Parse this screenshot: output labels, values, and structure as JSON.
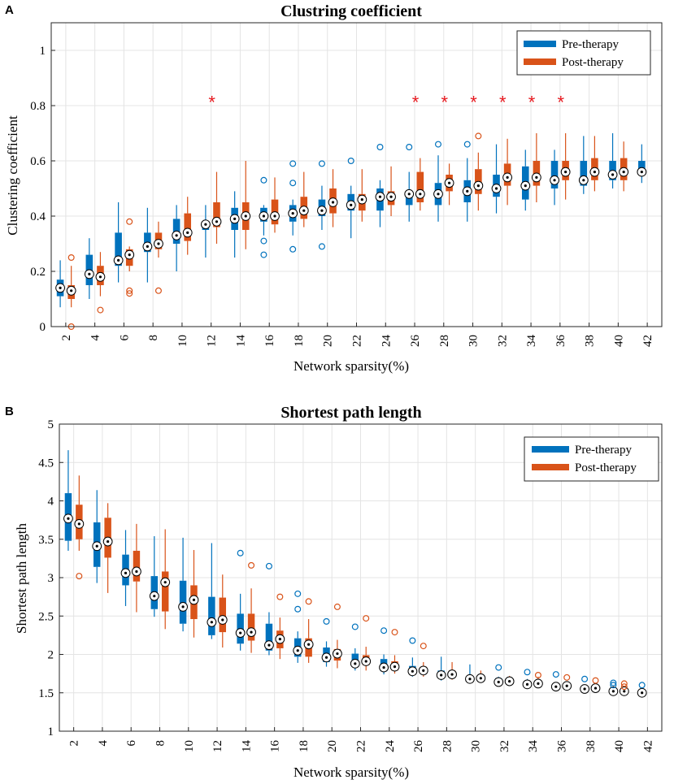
{
  "colors": {
    "pre": "#0072BD",
    "post": "#D95319",
    "star": "#E8191F",
    "grid": "#E4E4E4"
  },
  "chart_data": [
    {
      "panel_label": "A",
      "type": "box",
      "title": "Clustring coefficient",
      "xlabel": "Network sparsity(%)",
      "ylabel": "Clustering coefficient",
      "ylim": [
        0,
        1.1
      ],
      "yticks": [
        "0",
        "0.2",
        "0.4",
        "0.6",
        "0.8",
        "1"
      ],
      "xticks": [
        "2",
        "4",
        "6",
        "8",
        "10",
        "12",
        "14",
        "16",
        "18",
        "20",
        "22",
        "24",
        "26",
        "28",
        "30",
        "32",
        "34",
        "36",
        "38",
        "40",
        "42"
      ],
      "legend": [
        "Pre-therapy",
        "Post-therapy"
      ],
      "legend_position": "top-right",
      "significance_marker": "*",
      "significant_sparsity": [
        12,
        26,
        28,
        30,
        32,
        34,
        36
      ],
      "sparsity": [
        2,
        4,
        6,
        8,
        10,
        12,
        14,
        16,
        18,
        20,
        22,
        24,
        26,
        28,
        30,
        32,
        34,
        36,
        38,
        40,
        42
      ],
      "series": [
        {
          "name": "Pre-therapy",
          "boxes": [
            {
              "q1": 0.11,
              "med": 0.14,
              "q3": 0.17,
              "lo": 0.07,
              "hi": 0.24,
              "out": []
            },
            {
              "q1": 0.15,
              "med": 0.19,
              "q3": 0.26,
              "lo": 0.1,
              "hi": 0.32,
              "out": []
            },
            {
              "q1": 0.22,
              "med": 0.24,
              "q3": 0.34,
              "lo": 0.16,
              "hi": 0.45,
              "out": []
            },
            {
              "q1": 0.27,
              "med": 0.29,
              "q3": 0.34,
              "lo": 0.16,
              "hi": 0.43,
              "out": []
            },
            {
              "q1": 0.3,
              "med": 0.33,
              "q3": 0.39,
              "lo": 0.2,
              "hi": 0.44,
              "out": []
            },
            {
              "q1": 0.35,
              "med": 0.37,
              "q3": 0.38,
              "lo": 0.25,
              "hi": 0.44,
              "out": []
            },
            {
              "q1": 0.35,
              "med": 0.39,
              "q3": 0.43,
              "lo": 0.25,
              "hi": 0.49,
              "out": []
            },
            {
              "q1": 0.38,
              "med": 0.4,
              "q3": 0.43,
              "lo": 0.33,
              "hi": 0.44,
              "out": [
                0.53,
                0.31,
                0.26
              ]
            },
            {
              "q1": 0.38,
              "med": 0.41,
              "q3": 0.44,
              "lo": 0.33,
              "hi": 0.46,
              "out": [
                0.59,
                0.52,
                0.28
              ]
            },
            {
              "q1": 0.4,
              "med": 0.42,
              "q3": 0.46,
              "lo": 0.35,
              "hi": 0.51,
              "out": [
                0.59,
                0.29
              ]
            },
            {
              "q1": 0.42,
              "med": 0.44,
              "q3": 0.48,
              "lo": 0.32,
              "hi": 0.51,
              "out": [
                0.6
              ]
            },
            {
              "q1": 0.42,
              "med": 0.47,
              "q3": 0.5,
              "lo": 0.36,
              "hi": 0.53,
              "out": [
                0.65
              ]
            },
            {
              "q1": 0.44,
              "med": 0.48,
              "q3": 0.49,
              "lo": 0.38,
              "hi": 0.56,
              "out": [
                0.65
              ]
            },
            {
              "q1": 0.44,
              "med": 0.48,
              "q3": 0.52,
              "lo": 0.38,
              "hi": 0.62,
              "out": [
                0.66
              ]
            },
            {
              "q1": 0.45,
              "med": 0.49,
              "q3": 0.53,
              "lo": 0.38,
              "hi": 0.61,
              "out": [
                0.66
              ]
            },
            {
              "q1": 0.47,
              "med": 0.5,
              "q3": 0.55,
              "lo": 0.41,
              "hi": 0.66,
              "out": []
            },
            {
              "q1": 0.46,
              "med": 0.51,
              "q3": 0.58,
              "lo": 0.42,
              "hi": 0.64,
              "out": []
            },
            {
              "q1": 0.5,
              "med": 0.53,
              "q3": 0.6,
              "lo": 0.44,
              "hi": 0.64,
              "out": []
            },
            {
              "q1": 0.51,
              "med": 0.53,
              "q3": 0.6,
              "lo": 0.48,
              "hi": 0.69,
              "out": []
            },
            {
              "q1": 0.53,
              "med": 0.55,
              "q3": 0.6,
              "lo": 0.5,
              "hi": 0.7,
              "out": []
            },
            {
              "q1": 0.55,
              "med": 0.56,
              "q3": 0.6,
              "lo": 0.52,
              "hi": 0.66,
              "out": []
            }
          ]
        },
        {
          "name": "Post-therapy",
          "boxes": [
            {
              "q1": 0.1,
              "med": 0.13,
              "q3": 0.15,
              "lo": 0.07,
              "hi": 0.22,
              "out": [
                0.25,
                0.0
              ]
            },
            {
              "q1": 0.15,
              "med": 0.18,
              "q3": 0.22,
              "lo": 0.11,
              "hi": 0.27,
              "out": [
                0.06
              ]
            },
            {
              "q1": 0.22,
              "med": 0.26,
              "q3": 0.28,
              "lo": 0.2,
              "hi": 0.29,
              "out": [
                0.38,
                0.13,
                0.12
              ]
            },
            {
              "q1": 0.28,
              "med": 0.3,
              "q3": 0.34,
              "lo": 0.25,
              "hi": 0.38,
              "out": [
                0.13
              ]
            },
            {
              "q1": 0.31,
              "med": 0.34,
              "q3": 0.41,
              "lo": 0.26,
              "hi": 0.47,
              "out": []
            },
            {
              "q1": 0.36,
              "med": 0.38,
              "q3": 0.45,
              "lo": 0.3,
              "hi": 0.56,
              "out": []
            },
            {
              "q1": 0.35,
              "med": 0.4,
              "q3": 0.45,
              "lo": 0.28,
              "hi": 0.6,
              "out": []
            },
            {
              "q1": 0.37,
              "med": 0.4,
              "q3": 0.46,
              "lo": 0.34,
              "hi": 0.54,
              "out": []
            },
            {
              "q1": 0.39,
              "med": 0.42,
              "q3": 0.47,
              "lo": 0.36,
              "hi": 0.56,
              "out": []
            },
            {
              "q1": 0.41,
              "med": 0.45,
              "q3": 0.5,
              "lo": 0.36,
              "hi": 0.57,
              "out": []
            },
            {
              "q1": 0.42,
              "med": 0.46,
              "q3": 0.48,
              "lo": 0.38,
              "hi": 0.57,
              "out": []
            },
            {
              "q1": 0.44,
              "med": 0.47,
              "q3": 0.49,
              "lo": 0.4,
              "hi": 0.58,
              "out": []
            },
            {
              "q1": 0.45,
              "med": 0.48,
              "q3": 0.56,
              "lo": 0.42,
              "hi": 0.61,
              "out": []
            },
            {
              "q1": 0.49,
              "med": 0.52,
              "q3": 0.55,
              "lo": 0.44,
              "hi": 0.59,
              "out": []
            },
            {
              "q1": 0.48,
              "med": 0.51,
              "q3": 0.57,
              "lo": 0.42,
              "hi": 0.63,
              "out": [
                0.69
              ]
            },
            {
              "q1": 0.51,
              "med": 0.54,
              "q3": 0.59,
              "lo": 0.44,
              "hi": 0.68,
              "out": []
            },
            {
              "q1": 0.51,
              "med": 0.54,
              "q3": 0.6,
              "lo": 0.45,
              "hi": 0.7,
              "out": []
            },
            {
              "q1": 0.53,
              "med": 0.56,
              "q3": 0.6,
              "lo": 0.46,
              "hi": 0.7,
              "out": []
            },
            {
              "q1": 0.53,
              "med": 0.56,
              "q3": 0.61,
              "lo": 0.49,
              "hi": 0.69,
              "out": []
            },
            {
              "q1": 0.53,
              "med": 0.56,
              "q3": 0.61,
              "lo": 0.49,
              "hi": 0.67,
              "out": []
            },
            null
          ]
        }
      ]
    },
    {
      "panel_label": "B",
      "type": "box",
      "title": "Shortest path length",
      "xlabel": "Network sparsity(%)",
      "ylabel": "Shortest path length",
      "ylim": [
        1,
        5
      ],
      "yticks": [
        "1",
        "1.5",
        "2",
        "2.5",
        "3",
        "3.5",
        "4",
        "4.5",
        "5"
      ],
      "xticks": [
        "2",
        "4",
        "6",
        "8",
        "10",
        "12",
        "14",
        "16",
        "18",
        "20",
        "22",
        "24",
        "26",
        "28",
        "30",
        "32",
        "34",
        "36",
        "38",
        "40",
        "42"
      ],
      "legend": [
        "Pre-therapy",
        "Post-therapy"
      ],
      "legend_position": "top-right",
      "sparsity": [
        2,
        4,
        6,
        8,
        10,
        12,
        14,
        16,
        18,
        20,
        22,
        24,
        26,
        28,
        30,
        32,
        34,
        36,
        38,
        40,
        42
      ],
      "series": [
        {
          "name": "Pre-therapy",
          "boxes": [
            {
              "q1": 3.48,
              "med": 3.77,
              "q3": 4.1,
              "lo": 3.35,
              "hi": 4.66,
              "out": []
            },
            {
              "q1": 3.14,
              "med": 3.41,
              "q3": 3.72,
              "lo": 2.93,
              "hi": 4.14,
              "out": []
            },
            {
              "q1": 2.9,
              "med": 3.06,
              "q3": 3.3,
              "lo": 2.63,
              "hi": 3.62,
              "out": []
            },
            {
              "q1": 2.59,
              "med": 2.76,
              "q3": 3.02,
              "lo": 2.49,
              "hi": 3.54,
              "out": []
            },
            {
              "q1": 2.4,
              "med": 2.62,
              "q3": 2.96,
              "lo": 2.3,
              "hi": 3.52,
              "out": []
            },
            {
              "q1": 2.25,
              "med": 2.42,
              "q3": 2.75,
              "lo": 2.2,
              "hi": 3.45,
              "out": []
            },
            {
              "q1": 2.14,
              "med": 2.28,
              "q3": 2.53,
              "lo": 2.05,
              "hi": 2.79,
              "out": [
                3.32
              ]
            },
            {
              "q1": 2.05,
              "med": 2.12,
              "q3": 2.4,
              "lo": 1.99,
              "hi": 2.55,
              "out": [
                3.15
              ]
            },
            {
              "q1": 1.97,
              "med": 2.05,
              "q3": 2.21,
              "lo": 1.89,
              "hi": 2.3,
              "out": [
                2.79,
                2.59
              ]
            },
            {
              "q1": 1.9,
              "med": 1.96,
              "q3": 2.09,
              "lo": 1.84,
              "hi": 2.17,
              "out": [
                2.43
              ]
            },
            {
              "q1": 1.84,
              "med": 1.88,
              "q3": 2.01,
              "lo": 1.79,
              "hi": 2.08,
              "out": [
                2.36
              ]
            },
            {
              "q1": 1.78,
              "med": 1.83,
              "q3": 1.94,
              "lo": 1.74,
              "hi": 2.0,
              "out": [
                2.31
              ]
            },
            {
              "q1": 1.74,
              "med": 1.78,
              "q3": 1.85,
              "lo": 1.71,
              "hi": 1.96,
              "out": [
                2.18
              ]
            },
            {
              "q1": 1.7,
              "med": 1.73,
              "q3": 1.79,
              "lo": 1.66,
              "hi": 1.97,
              "out": []
            },
            {
              "q1": 1.66,
              "med": 1.68,
              "q3": 1.72,
              "lo": 1.64,
              "hi": 1.87,
              "out": []
            },
            {
              "q1": 1.62,
              "med": 1.64,
              "q3": 1.69,
              "lo": 1.6,
              "hi": 1.71,
              "out": [
                1.83
              ]
            },
            {
              "q1": 1.59,
              "med": 1.61,
              "q3": 1.65,
              "lo": 1.57,
              "hi": 1.68,
              "out": [
                1.77
              ]
            },
            {
              "q1": 1.56,
              "med": 1.58,
              "q3": 1.6,
              "lo": 1.55,
              "hi": 1.63,
              "out": [
                1.74
              ]
            },
            {
              "q1": 1.53,
              "med": 1.55,
              "q3": 1.57,
              "lo": 1.52,
              "hi": 1.6,
              "out": [
                1.68
              ]
            },
            {
              "q1": 1.51,
              "med": 1.52,
              "q3": 1.55,
              "lo": 1.49,
              "hi": 1.57,
              "out": [
                1.63,
                1.6
              ]
            },
            {
              "q1": 1.48,
              "med": 1.5,
              "q3": 1.52,
              "lo": 1.47,
              "hi": 1.54,
              "out": [
                1.6
              ]
            }
          ]
        },
        {
          "name": "Post-therapy",
          "boxes": [
            {
              "q1": 3.5,
              "med": 3.7,
              "q3": 3.95,
              "lo": 3.35,
              "hi": 4.33,
              "out": [
                3.02
              ]
            },
            {
              "q1": 3.26,
              "med": 3.47,
              "q3": 3.78,
              "lo": 2.8,
              "hi": 3.97,
              "out": []
            },
            {
              "q1": 2.95,
              "med": 3.08,
              "q3": 3.35,
              "lo": 2.55,
              "hi": 3.7,
              "out": []
            },
            {
              "q1": 2.56,
              "med": 2.94,
              "q3": 3.08,
              "lo": 2.33,
              "hi": 3.63,
              "out": []
            },
            {
              "q1": 2.46,
              "med": 2.71,
              "q3": 2.9,
              "lo": 2.22,
              "hi": 3.36,
              "out": []
            },
            {
              "q1": 2.29,
              "med": 2.45,
              "q3": 2.74,
              "lo": 2.09,
              "hi": 3.04,
              "out": []
            },
            {
              "q1": 2.18,
              "med": 2.29,
              "q3": 2.53,
              "lo": 2.02,
              "hi": 2.86,
              "out": [
                3.16
              ]
            },
            {
              "q1": 2.08,
              "med": 2.2,
              "q3": 2.31,
              "lo": 1.94,
              "hi": 2.48,
              "out": [
                2.75
              ]
            },
            {
              "q1": 1.97,
              "med": 2.13,
              "q3": 2.21,
              "lo": 1.89,
              "hi": 2.46,
              "out": [
                2.69
              ]
            },
            {
              "q1": 1.92,
              "med": 2.01,
              "q3": 2.07,
              "lo": 1.82,
              "hi": 2.19,
              "out": [
                2.62
              ]
            },
            {
              "q1": 1.86,
              "med": 1.91,
              "q3": 1.99,
              "lo": 1.79,
              "hi": 2.1,
              "out": [
                2.47
              ]
            },
            {
              "q1": 1.79,
              "med": 1.84,
              "q3": 1.91,
              "lo": 1.75,
              "hi": 1.99,
              "out": [
                2.29
              ]
            },
            {
              "q1": 1.75,
              "med": 1.79,
              "q3": 1.84,
              "lo": 1.71,
              "hi": 1.9,
              "out": [
                2.11
              ]
            },
            {
              "q1": 1.71,
              "med": 1.74,
              "q3": 1.79,
              "lo": 1.67,
              "hi": 1.9,
              "out": []
            },
            {
              "q1": 1.66,
              "med": 1.69,
              "q3": 1.72,
              "lo": 1.64,
              "hi": 1.79,
              "out": []
            },
            {
              "q1": 1.63,
              "med": 1.65,
              "q3": 1.68,
              "lo": 1.61,
              "hi": 1.72,
              "out": []
            },
            {
              "q1": 1.6,
              "med": 1.62,
              "q3": 1.66,
              "lo": 1.58,
              "hi": 1.71,
              "out": [
                1.73
              ]
            },
            {
              "q1": 1.56,
              "med": 1.59,
              "q3": 1.62,
              "lo": 1.55,
              "hi": 1.65,
              "out": [
                1.7
              ]
            },
            {
              "q1": 1.53,
              "med": 1.56,
              "q3": 1.58,
              "lo": 1.52,
              "hi": 1.61,
              "out": [
                1.66
              ]
            },
            {
              "q1": 1.5,
              "med": 1.52,
              "q3": 1.55,
              "lo": 1.49,
              "hi": 1.57,
              "out": [
                1.62,
                1.58
              ]
            },
            null
          ]
        }
      ]
    }
  ]
}
